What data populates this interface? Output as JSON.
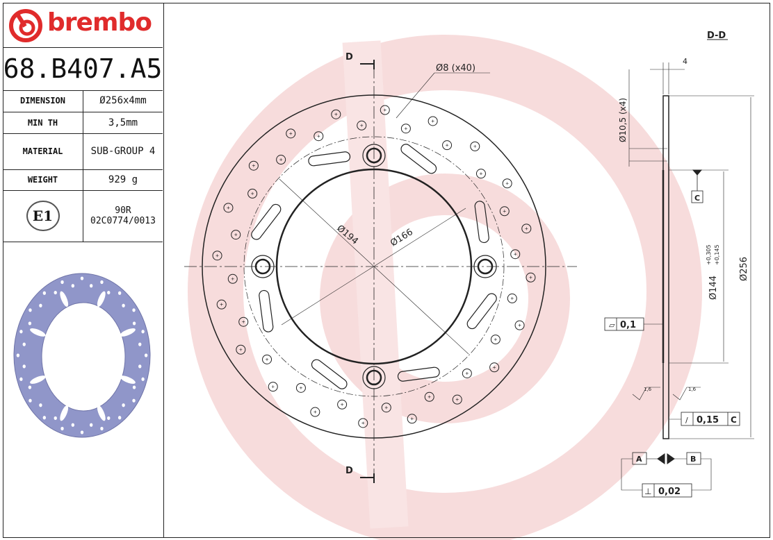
{
  "brand": {
    "name": "brembo",
    "color": "#e02b2b"
  },
  "part_number": "68.B407.A5",
  "specs": [
    {
      "label": "DIMENSION",
      "value": "Ø256x4mm"
    },
    {
      "label": "MIN TH",
      "value": "3,5mm"
    },
    {
      "label": "MATERIAL",
      "value": "SUB-GROUP 4"
    },
    {
      "label": "WEIGHT",
      "value": "929 g"
    }
  ],
  "approval": {
    "mark": "E1",
    "code_line1": "90R",
    "code_line2": "02C0774/0013"
  },
  "drawing": {
    "section_label_top": "D",
    "section_label_bottom": "D",
    "section_title": "D-D",
    "holes_callout": "Ø8 (x40)",
    "dia_194": "Ø194",
    "dia_166": "Ø166",
    "thickness": "4",
    "bolt_holes": "Ø10,5 (x4)",
    "datum_c": "C",
    "bore": "Ø144",
    "bore_tol_upper": "+0,305",
    "bore_tol_lower": "+0,145",
    "outer_dia": "Ø256",
    "flatness": "0,1",
    "roughness_left": "1,6",
    "roughness_right": "1,6",
    "runout": "0,15",
    "runout_datum": "C",
    "datum_a": "A",
    "datum_b": "B",
    "parallelism": "0,02"
  },
  "colors": {
    "disc_render": "#9096c9",
    "watermark": "#f6d6d6",
    "line": "#222222"
  }
}
